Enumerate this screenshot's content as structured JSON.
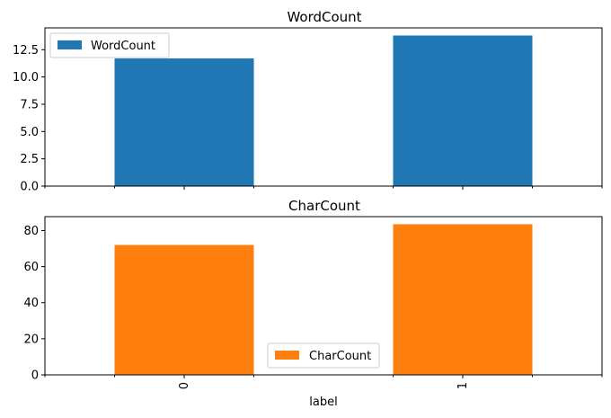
{
  "chart_data": {
    "type": "bar",
    "subplots": "vertical",
    "shared_x": true,
    "xlabel": "label",
    "categories": [
      "0",
      "1"
    ],
    "panels": [
      {
        "title": "WordCount",
        "series": [
          {
            "name": "WordCount",
            "values": [
              11.7,
              13.8
            ]
          }
        ],
        "color": "#1f77b4",
        "ylim": [
          0,
          14.5
        ],
        "yticks": [
          0.0,
          2.5,
          5.0,
          7.5,
          10.0,
          12.5
        ],
        "ytick_labels": [
          "0.0",
          "2.5",
          "5.0",
          "7.5",
          "10.0",
          "12.5"
        ],
        "legend": "top-left",
        "grid": false
      },
      {
        "title": "CharCount",
        "series": [
          {
            "name": "CharCount",
            "values": [
              72,
              83.5
            ]
          }
        ],
        "color": "#ff7f0e",
        "ylim": [
          0,
          87.7
        ],
        "yticks": [
          0,
          20,
          40,
          60,
          80
        ],
        "ytick_labels": [
          "0",
          "20",
          "40",
          "60",
          "80"
        ],
        "legend": "bottom-center",
        "grid": false
      }
    ]
  }
}
